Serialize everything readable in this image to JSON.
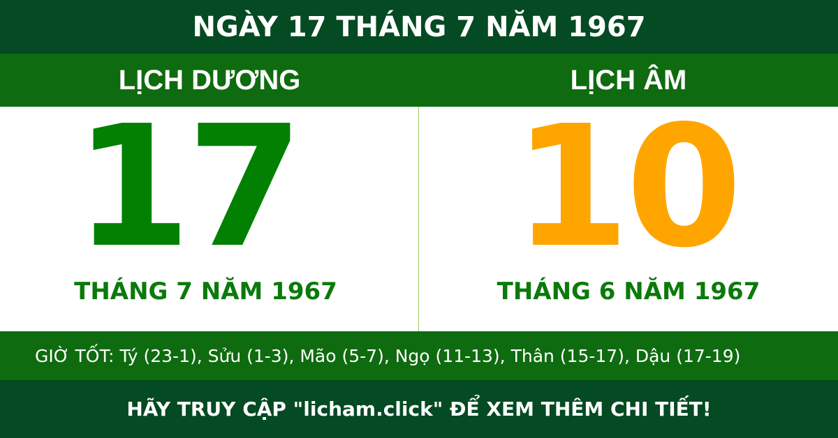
{
  "title": "NGÀY 17 THÁNG 7 NĂM 1967",
  "solar": {
    "label": "LỊCH DƯƠNG",
    "day": "17",
    "month_year": "THÁNG 7 NĂM 1967"
  },
  "lunar": {
    "label": "LỊCH ÂM",
    "day": "10",
    "month_year": "THÁNG 6 NĂM 1967"
  },
  "good_hours": "GIỜ TỐT: Tý (23-1), Sửu (1-3), Mão (5-7), Ngọ (11-13), Thân (15-17), Dậu (17-19)",
  "footer": "HÃY TRUY CẬP \"licham.click\" ĐỂ XEM THÊM CHI TIẾT!",
  "colors": {
    "dark_green": "#044a22",
    "green": "#0f6b0f",
    "solar_day": "#028002",
    "lunar_day": "#ffa500"
  }
}
